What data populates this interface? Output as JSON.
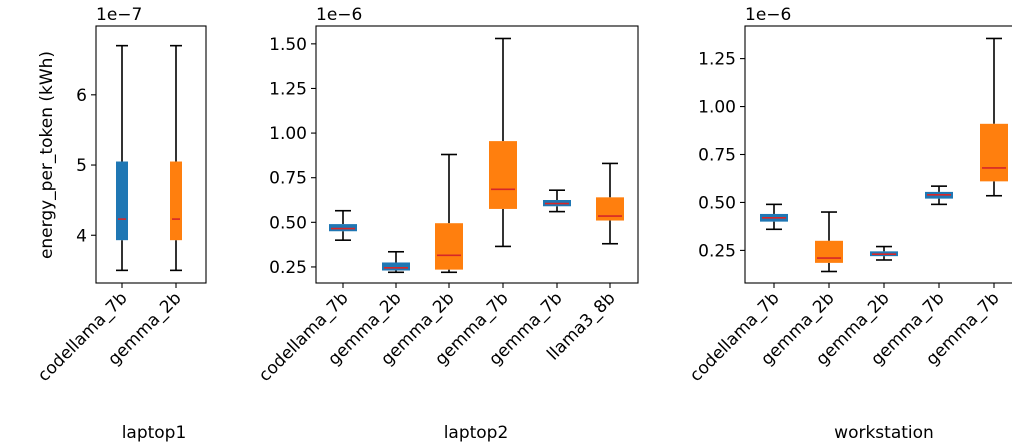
{
  "ylabel": "energy_per_token (kWh)",
  "colors": {
    "series_a": "#1f77b4",
    "series_b": "#ff7f0e",
    "median": "#d62728",
    "axis": "#000000"
  },
  "chart_data": [
    {
      "type": "box",
      "xlabel": "laptop1",
      "offset_label": "1e−7",
      "scale": 1e-07,
      "ylim": [
        3.32,
        6.98
      ],
      "yticks": [
        4,
        5,
        6
      ],
      "ytick_labels": [
        "4",
        "5",
        "6"
      ],
      "boxes": [
        {
          "label": "codellama_7b",
          "color": "series_a",
          "min": 3.5,
          "q1": 3.93,
          "median": 4.23,
          "q3": 5.05,
          "max": 6.7
        },
        {
          "label": "gemma_2b",
          "color": "series_b",
          "min": 3.5,
          "q1": 3.93,
          "median": 4.23,
          "q3": 5.05,
          "max": 6.7
        }
      ]
    },
    {
      "type": "box",
      "xlabel": "laptop2",
      "offset_label": "1e−6",
      "scale": 1e-06,
      "ylim": [
        0.16,
        1.6
      ],
      "yticks": [
        0.25,
        0.5,
        0.75,
        1.0,
        1.25,
        1.5
      ],
      "ytick_labels": [
        "0.25",
        "0.50",
        "0.75",
        "1.00",
        "1.25",
        "1.50"
      ],
      "boxes": [
        {
          "label": "codellama_7b",
          "color": "series_a",
          "min": 0.4,
          "q1": 0.45,
          "median": 0.465,
          "q3": 0.49,
          "max": 0.565
        },
        {
          "label": "gemma_2b",
          "color": "series_a",
          "min": 0.22,
          "q1": 0.23,
          "median": 0.245,
          "q3": 0.275,
          "max": 0.335
        },
        {
          "label": "gemma_2b",
          "color": "series_b",
          "min": 0.22,
          "q1": 0.235,
          "median": 0.315,
          "q3": 0.495,
          "max": 0.88
        },
        {
          "label": "gemma_7b",
          "color": "series_b",
          "min": 0.365,
          "q1": 0.575,
          "median": 0.685,
          "q3": 0.955,
          "max": 1.53
        },
        {
          "label": "gemma_7b",
          "color": "series_a",
          "min": 0.56,
          "q1": 0.59,
          "median": 0.605,
          "q3": 0.625,
          "max": 0.68
        },
        {
          "label": "llama3_8b",
          "color": "series_b",
          "min": 0.38,
          "q1": 0.51,
          "median": 0.535,
          "q3": 0.64,
          "max": 0.83
        }
      ]
    },
    {
      "type": "box",
      "xlabel": "workstation",
      "offset_label": "1e−6",
      "scale": 1e-06,
      "ylim": [
        0.08,
        1.42
      ],
      "yticks": [
        0.25,
        0.5,
        0.75,
        1.0,
        1.25
      ],
      "ytick_labels": [
        "0.25",
        "0.50",
        "0.75",
        "1.00",
        "1.25"
      ],
      "boxes": [
        {
          "label": "codellama_7b",
          "color": "series_a",
          "min": 0.36,
          "q1": 0.4,
          "median": 0.42,
          "q3": 0.44,
          "max": 0.49
        },
        {
          "label": "gemma_2b",
          "color": "series_b",
          "min": 0.14,
          "q1": 0.185,
          "median": 0.21,
          "q3": 0.3,
          "max": 0.45
        },
        {
          "label": "gemma_2b",
          "color": "series_a",
          "min": 0.2,
          "q1": 0.22,
          "median": 0.23,
          "q3": 0.245,
          "max": 0.27
        },
        {
          "label": "gemma_7b",
          "color": "series_a",
          "min": 0.49,
          "q1": 0.52,
          "median": 0.54,
          "q3": 0.555,
          "max": 0.585
        },
        {
          "label": "gemma_7b",
          "color": "series_b",
          "min": 0.535,
          "q1": 0.61,
          "median": 0.68,
          "q3": 0.91,
          "max": 1.355
        }
      ]
    }
  ]
}
